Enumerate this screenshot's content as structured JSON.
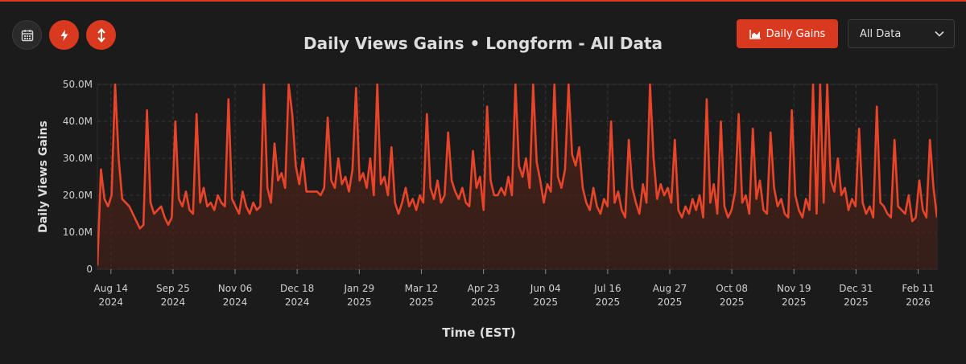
{
  "toolbar": {
    "calendar_icon": "calendar-icon",
    "bolt_icon": "lightning-icon",
    "sort_icon": "vertical-arrows-icon"
  },
  "header": {
    "gains_button_label": "Daily Gains",
    "select_value": "All Data"
  },
  "colors": {
    "accent": "#d9391f",
    "line": "#e8442a",
    "fill": "#4a2118",
    "background": "#1b1b1b",
    "grid": "#3a3a3a"
  },
  "chart_data": {
    "type": "area",
    "title": "Daily Views Gains • Longform - All Data",
    "xlabel": "Time (EST)",
    "ylabel": "Daily Views Gains",
    "ylim": [
      0,
      50
    ],
    "y_unit": "M",
    "yticks": [
      0,
      10,
      20,
      30,
      40,
      50
    ],
    "ytick_labels": [
      "0",
      "10.0M",
      "20.0M",
      "30.0M",
      "40.0M",
      "50.0M"
    ],
    "xticks": [
      {
        "label": [
          "Aug 14",
          "2024"
        ],
        "pos": 2.5
      },
      {
        "label": [
          "Sep 25",
          "2024"
        ],
        "pos": 14.0
      },
      {
        "label": [
          "Nov 06",
          "2024"
        ],
        "pos": 25.5
      },
      {
        "label": [
          "Dec 18",
          "2024"
        ],
        "pos": 37.0
      },
      {
        "label": [
          "Jan 29",
          "2025"
        ],
        "pos": 48.5
      },
      {
        "label": [
          "Mar 12",
          "2025"
        ],
        "pos": 60.0
      },
      {
        "label": [
          "Apr 23",
          "2025"
        ],
        "pos": 71.5
      },
      {
        "label": [
          "Jun 04",
          "2025"
        ],
        "pos": 83.0
      },
      {
        "label": [
          "Jul 16",
          "2025"
        ],
        "pos": 94.5
      },
      {
        "label": [
          "Aug 27",
          "2025"
        ],
        "pos": 106.0
      },
      {
        "label": [
          "Oct 08",
          "2025"
        ],
        "pos": 117.5
      },
      {
        "label": [
          "Nov 19",
          "2025"
        ],
        "pos": 129.0
      },
      {
        "label": [
          "Dec 31",
          "2025"
        ],
        "pos": 140.5
      },
      {
        "label": [
          "Feb 11",
          "2026"
        ],
        "pos": 152.0
      }
    ],
    "x_range": [
      0,
      155.5
    ],
    "series": [
      {
        "name": "Daily Views Gains",
        "values": [
          1,
          27,
          19,
          17,
          20,
          50,
          30,
          19,
          18,
          17,
          15,
          13,
          11,
          12,
          43,
          18,
          15,
          16,
          17,
          14,
          12,
          14,
          40,
          19,
          17,
          21,
          16,
          15,
          42,
          18,
          22,
          17,
          18,
          16,
          20,
          18,
          17,
          46,
          19,
          17,
          15,
          21,
          17,
          15,
          18,
          16,
          17,
          50,
          22,
          18,
          34,
          24,
          26,
          22,
          50,
          42,
          28,
          23,
          30,
          21,
          21,
          21,
          21,
          20,
          22,
          41,
          24,
          22,
          30,
          23,
          25,
          21,
          27,
          49,
          24,
          26,
          22,
          30,
          20,
          50,
          23,
          25,
          20,
          33,
          18,
          15,
          18,
          22,
          17,
          19,
          16,
          20,
          18,
          42,
          22,
          19,
          24,
          18,
          20,
          37,
          24,
          21,
          19,
          22,
          18,
          17,
          32,
          22,
          25,
          16,
          44,
          24,
          20,
          20,
          22,
          20,
          25,
          20,
          50,
          28,
          25,
          30,
          22,
          50,
          29,
          24,
          18,
          23,
          21,
          50,
          25,
          22,
          27,
          50,
          31,
          28,
          33,
          22,
          18,
          16,
          22,
          17,
          15,
          19,
          17,
          40,
          18,
          21,
          16,
          14,
          35,
          22,
          18,
          15,
          23,
          18,
          50,
          30,
          19,
          23,
          20,
          22,
          18,
          35,
          16,
          14,
          17,
          15,
          19,
          16,
          20,
          14,
          46,
          18,
          23,
          15,
          40,
          17,
          14,
          16,
          21,
          42,
          18,
          20,
          15,
          38,
          19,
          24,
          16,
          15,
          37,
          22,
          17,
          19,
          15,
          14,
          43,
          20,
          16,
          14,
          19,
          16,
          50,
          15,
          50,
          18,
          50,
          24,
          21,
          30,
          20,
          22,
          16,
          19,
          17,
          38,
          18,
          15,
          17,
          14,
          44,
          18,
          17,
          15,
          14,
          35,
          17,
          16,
          15,
          20,
          13,
          14,
          24,
          16,
          14,
          35,
          22,
          14
        ]
      }
    ]
  }
}
